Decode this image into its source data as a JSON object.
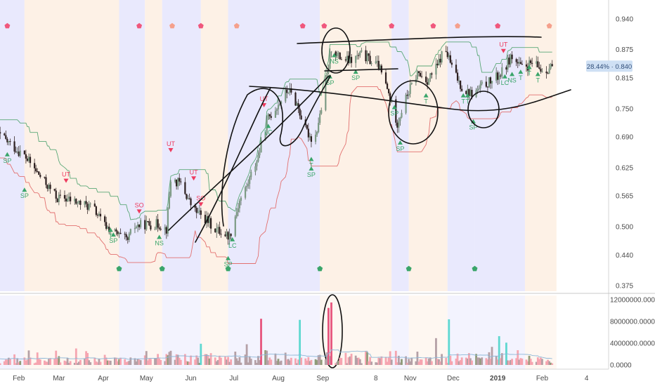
{
  "chart_data": [
    {
      "type": "candlestick",
      "title": "",
      "xlabel": "",
      "ylabel": "",
      "ylim": [
        0.37,
        0.965
      ],
      "y_ticks": [
        "0.940",
        "0.875",
        "0.815",
        "0.750",
        "0.690",
        "0.625",
        "0.565",
        "0.500",
        "0.440",
        "0.375"
      ],
      "y_tick_values": [
        0.94,
        0.875,
        0.815,
        0.75,
        0.69,
        0.625,
        0.565,
        0.5,
        0.44,
        0.375
      ],
      "price_badge": "28.44% · 0.840",
      "last_price": 0.84,
      "axis_scale": "linear",
      "grid": false,
      "time_range": [
        "2018-01-15",
        "2019-02-15"
      ],
      "candle_interval": "1 day",
      "anchors": [
        [
          "2018-01-15",
          0.7
        ],
        [
          "2018-01-20",
          0.69
        ],
        [
          "2018-01-28",
          0.67
        ],
        [
          "2018-02-05",
          0.65
        ],
        [
          "2018-02-15",
          0.61
        ],
        [
          "2018-02-28",
          0.56
        ],
        [
          "2018-03-05",
          0.56
        ],
        [
          "2018-03-15",
          0.55
        ],
        [
          "2018-03-25",
          0.54
        ],
        [
          "2018-04-01",
          0.505
        ],
        [
          "2018-04-12",
          0.48
        ],
        [
          "2018-04-18",
          0.47
        ],
        [
          "2018-04-22",
          0.5
        ],
        [
          "2018-04-30",
          0.505
        ],
        [
          "2018-05-10",
          0.505
        ],
        [
          "2018-05-15",
          0.495
        ],
        [
          "2018-05-18",
          0.6
        ],
        [
          "2018-05-25",
          0.59
        ],
        [
          "2018-06-03",
          0.535
        ],
        [
          "2018-06-10",
          0.52
        ],
        [
          "2018-06-18",
          0.495
        ],
        [
          "2018-06-28",
          0.48
        ],
        [
          "2018-07-05",
          0.555
        ],
        [
          "2018-07-10",
          0.585
        ],
        [
          "2018-07-18",
          0.65
        ],
        [
          "2018-07-25",
          0.73
        ],
        [
          "2018-08-01",
          0.76
        ],
        [
          "2018-08-08",
          0.79
        ],
        [
          "2018-08-14",
          0.76
        ],
        [
          "2018-08-20",
          0.705
        ],
        [
          "2018-08-26",
          0.68
        ],
        [
          "2018-08-31",
          0.75
        ],
        [
          "2018-09-03",
          0.8
        ],
        [
          "2018-09-07",
          0.88
        ],
        [
          "2018-09-12",
          0.86
        ],
        [
          "2018-09-20",
          0.85
        ],
        [
          "2018-09-28",
          0.865
        ],
        [
          "2018-10-05",
          0.85
        ],
        [
          "2018-10-10",
          0.84
        ],
        [
          "2018-10-16",
          0.79
        ],
        [
          "2018-10-23",
          0.72
        ],
        [
          "2018-10-30",
          0.78
        ],
        [
          "2018-11-06",
          0.825
        ],
        [
          "2018-11-13",
          0.81
        ],
        [
          "2018-11-20",
          0.84
        ],
        [
          "2018-11-25",
          0.88
        ],
        [
          "2018-12-01",
          0.83
        ],
        [
          "2018-12-08",
          0.79
        ],
        [
          "2018-12-15",
          0.78
        ],
        [
          "2018-12-22",
          0.8
        ],
        [
          "2018-12-29",
          0.81
        ],
        [
          "2019-01-05",
          0.83
        ],
        [
          "2019-01-10",
          0.86
        ],
        [
          "2019-01-18",
          0.835
        ],
        [
          "2019-01-25",
          0.845
        ],
        [
          "2019-02-02",
          0.83
        ],
        [
          "2019-02-08",
          0.84
        ]
      ],
      "signal_labels": [
        {
          "text": "SP",
          "date": "2018-01-24",
          "price": 0.64,
          "kind": "bull"
        },
        {
          "text": "SP",
          "date": "2018-02-05",
          "price": 0.565,
          "kind": "bull"
        },
        {
          "text": "UT",
          "date": "2018-03-06",
          "price": 0.6,
          "kind": "bear"
        },
        {
          "text": "T",
          "date": "2018-04-06",
          "price": 0.48,
          "kind": "bull"
        },
        {
          "text": "SP",
          "date": "2018-04-08",
          "price": 0.47,
          "kind": "bull"
        },
        {
          "text": "SO",
          "date": "2018-04-26",
          "price": 0.535,
          "kind": "bear"
        },
        {
          "text": "NS",
          "date": "2018-05-10",
          "price": 0.465,
          "kind": "bull"
        },
        {
          "text": "UT",
          "date": "2018-05-18",
          "price": 0.665,
          "kind": "bear"
        },
        {
          "text": "UT",
          "date": "2018-06-03",
          "price": 0.605,
          "kind": "bear"
        },
        {
          "text": "SO",
          "date": "2018-06-08",
          "price": 0.55,
          "kind": "bear"
        },
        {
          "text": "SP",
          "date": "2018-06-27",
          "price": 0.42,
          "kind": "bull"
        },
        {
          "text": "LC",
          "date": "2018-06-30",
          "price": 0.46,
          "kind": "bull"
        },
        {
          "text": "UT",
          "date": "2018-07-22",
          "price": 0.76,
          "kind": "bear"
        },
        {
          "text": "LC",
          "date": "2018-07-25",
          "price": 0.7,
          "kind": "bull"
        },
        {
          "text": "T",
          "date": "2018-08-24",
          "price": 0.63,
          "kind": "bull"
        },
        {
          "text": "SP",
          "date": "2018-08-24",
          "price": 0.61,
          "kind": "bull"
        },
        {
          "text": "NS",
          "date": "2018-09-09",
          "price": 0.85,
          "kind": "bull"
        },
        {
          "text": "SP",
          "date": "2018-09-06",
          "price": 0.805,
          "kind": "bull"
        },
        {
          "text": "SP",
          "date": "2018-09-24",
          "price": 0.815,
          "kind": "bull"
        },
        {
          "text": "SP",
          "date": "2018-10-21",
          "price": 0.74,
          "kind": "bull"
        },
        {
          "text": "SP",
          "date": "2018-10-25",
          "price": 0.665,
          "kind": "bull"
        },
        {
          "text": "T",
          "date": "2018-11-12",
          "price": 0.765,
          "kind": "bull"
        },
        {
          "text": "T",
          "date": "2018-12-08",
          "price": 0.765,
          "kind": "bull"
        },
        {
          "text": "T",
          "date": "2018-12-11",
          "price": 0.765,
          "kind": "bull"
        },
        {
          "text": "SP",
          "date": "2018-12-15",
          "price": 0.71,
          "kind": "bull"
        },
        {
          "text": "UT",
          "date": "2019-01-05",
          "price": 0.875,
          "kind": "bear"
        },
        {
          "text": "LC",
          "date": "2019-01-06",
          "price": 0.805,
          "kind": "bull"
        },
        {
          "text": "NS",
          "date": "2019-01-11",
          "price": 0.81,
          "kind": "bull"
        },
        {
          "text": "T",
          "date": "2019-01-17",
          "price": 0.815,
          "kind": "bull"
        },
        {
          "text": "T",
          "date": "2019-01-23",
          "price": 0.825,
          "kind": "bull"
        },
        {
          "text": "T",
          "date": "2019-01-29",
          "price": 0.81,
          "kind": "bull"
        },
        {
          "text": "D",
          "date": "2018-01-16",
          "price": 0.72,
          "kind": "bear"
        }
      ]
    },
    {
      "type": "bar",
      "title": "",
      "xlabel": "",
      "ylabel": "",
      "ylim": [
        0,
        12400000
      ],
      "y_ticks": [
        "12000000.0000",
        "8000000.0000",
        "4000000.0000",
        "0.0000"
      ],
      "y_tick_values": [
        12000000,
        8000000,
        4000000,
        0
      ],
      "spikes": [
        [
          "2018-01-28",
          4800000
        ],
        [
          "2018-06-08",
          3900000
        ],
        [
          "2018-07-20",
          8500000
        ],
        [
          "2018-08-16",
          8300000
        ],
        [
          "2018-08-18",
          9500000
        ],
        [
          "2018-09-05",
          10500000
        ],
        [
          "2018-09-07",
          11500000
        ],
        [
          "2018-11-28",
          8400000
        ],
        [
          "2018-12-02",
          4500000
        ],
        [
          "2019-01-02",
          5300000
        ],
        [
          "2019-01-07",
          4100000
        ]
      ]
    }
  ],
  "x_axis": {
    "labels": [
      {
        "text": "Feb",
        "date": "2018-02-01"
      },
      {
        "text": "Mar",
        "date": "2018-03-01"
      },
      {
        "text": "Apr",
        "date": "2018-04-01"
      },
      {
        "text": "May",
        "date": "2018-05-01"
      },
      {
        "text": "Jun",
        "date": "2018-06-01"
      },
      {
        "text": "Jul",
        "date": "2018-07-01"
      },
      {
        "text": "Aug",
        "date": "2018-08-01"
      },
      {
        "text": "Sep",
        "date": "2018-09-01"
      },
      {
        "text": "8",
        "date": "2018-10-08"
      },
      {
        "text": "Nov",
        "date": "2018-11-01"
      },
      {
        "text": "Dec",
        "date": "2018-12-01"
      },
      {
        "text": "2019",
        "date": "2019-01-01"
      },
      {
        "text": "Feb",
        "date": "2019-02-01"
      },
      {
        "text": "4",
        "date": "2019-03-04"
      }
    ]
  },
  "colors": {
    "up": "#26a69a",
    "down": "#ef5350",
    "up_volume": "#b5a0a6",
    "down_volume": "#f6a5b0",
    "band_blue": "#e9e9fd",
    "band_orange": "#fdf1e6",
    "pentagon_red": "#f0577c",
    "pentagon_orange": "#f5a08c",
    "pentagon_green": "#3aa56a",
    "signal_green": "#3aa56a",
    "signal_red": "#ee3c5f",
    "badge": "#cfe0f4"
  }
}
